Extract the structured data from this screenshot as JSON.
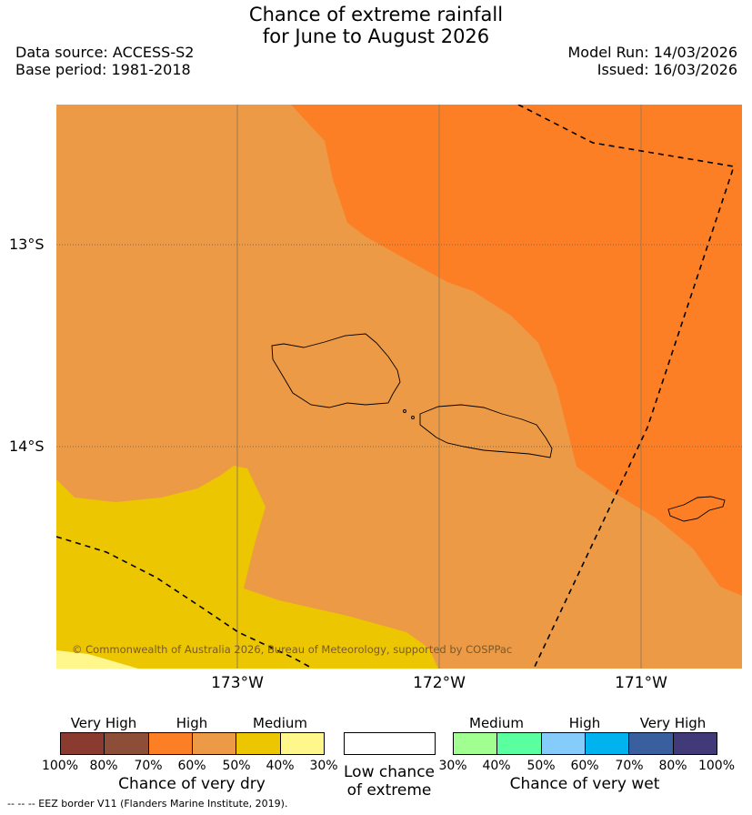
{
  "title": {
    "line1": "Chance of extreme rainfall",
    "line2": "for June to August 2026"
  },
  "meta": {
    "data_source": "Data source: ACCESS-S2",
    "base_period": "Base period: 1981-2018",
    "model_run": "Model Run: 14/03/2026",
    "issued": "Issued: 16/03/2026"
  },
  "map": {
    "lat_labels": [
      "13°S",
      "14°S"
    ],
    "lon_labels": [
      "173°W",
      "172°W",
      "171°W"
    ],
    "copyright": "© Commonwealth of Australia 2026, Bureau of Meteorology, supported by COSPPac",
    "colors": {
      "high_dry": "#ec9a45",
      "high_dry_60_70": "#fd7f25",
      "medium_dry": "#ecc600",
      "medium_dry_light": "#fff68c"
    }
  },
  "legend": {
    "dry": {
      "levels": [
        "Very High",
        "High",
        "Medium"
      ],
      "ticks": [
        "100%",
        "80%",
        "70%",
        "60%",
        "50%",
        "40%",
        "30%"
      ],
      "caption": "Chance of very dry",
      "colors": [
        "#8b3a30",
        "#8c4e38",
        "#fd7f25",
        "#ec9a45",
        "#ecc600",
        "#fff68c"
      ]
    },
    "low": {
      "line1": "Low chance",
      "line2": "of extreme",
      "color": "#ffffff"
    },
    "wet": {
      "levels": [
        "Medium",
        "High",
        "Very High"
      ],
      "ticks": [
        "30%",
        "40%",
        "50%",
        "60%",
        "70%",
        "80%",
        "100%"
      ],
      "caption": "Chance of very wet",
      "colors": [
        "#a0ff90",
        "#5aff9f",
        "#86ccfa",
        "#00b2ee",
        "#3a5f9f",
        "#403a79"
      ]
    },
    "eez_note": "-- -- -- EEZ border V11 (Flanders Marine Institute, 2019)."
  }
}
